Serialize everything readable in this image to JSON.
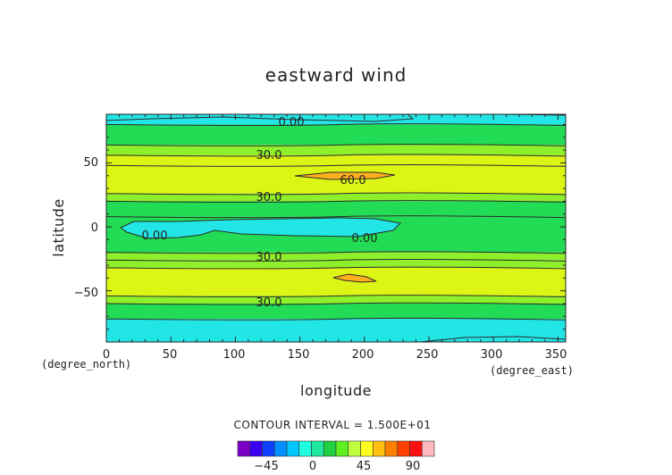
{
  "chart_data": {
    "type": "contour",
    "title": "eastward wind",
    "xlabel": "longitude",
    "ylabel": "latitude",
    "x_unit": "(degree_east)",
    "y_unit": "(degree_north)",
    "xlim": [
      0,
      356
    ],
    "ylim": [
      -90,
      88
    ],
    "x_ticks": [
      "0",
      "50",
      "100",
      "150",
      "200",
      "250",
      "300",
      "350"
    ],
    "y_ticks": [
      "50",
      "0",
      "−50"
    ],
    "contour_labels": [
      "0.00",
      "30.0",
      "60.0",
      "30.0",
      "0.00",
      "0.00",
      "30.0",
      "30.0"
    ],
    "contour_interval_text": "CONTOUR INTERVAL = 1.500E+01",
    "bands": [
      {
        "lat": [
          80,
          88
        ],
        "value": "0 to 15"
      },
      {
        "lat": [
          64,
          80
        ],
        "value": "15 to 30"
      },
      {
        "lat": [
          56,
          64
        ],
        "value": "30 to 45"
      },
      {
        "lat": [
          48,
          56
        ],
        "value": "45 to 60"
      },
      {
        "lat": [
          26,
          48
        ],
        "value": "45 to 60"
      },
      {
        "lat": [
          20,
          26
        ],
        "value": "30 to 45"
      },
      {
        "lat": [
          8,
          20
        ],
        "value": "15 to 30"
      },
      {
        "lat": [
          -20,
          8
        ],
        "value": "15 to 30"
      },
      {
        "lat": [
          -26,
          -20
        ],
        "value": "30 to 45"
      },
      {
        "lat": [
          -32,
          -26
        ],
        "value": "30 to 45"
      },
      {
        "lat": [
          -54,
          -32
        ],
        "value": "45 to 60"
      },
      {
        "lat": [
          -60,
          -54
        ],
        "value": "30 to 45"
      },
      {
        "lat": [
          -72,
          -60
        ],
        "value": "15 to 30"
      },
      {
        "lat": [
          -90,
          -72
        ],
        "value": "0 to 15"
      }
    ],
    "colorbar": {
      "tick_labels": [
        "−45",
        "0",
        "45",
        "90"
      ],
      "colors": [
        "#7a00c8",
        "#3a00f0",
        "#1040ff",
        "#0090ff",
        "#00c8ff",
        "#20ffe0",
        "#20e8a0",
        "#20d040",
        "#60f020",
        "#c0ff40",
        "#ffff20",
        "#ffc010",
        "#ff8000",
        "#ff4000",
        "#ff1010",
        "#ffb8c0"
      ]
    },
    "colors": {
      "cyan": "#22e6e6",
      "teal": "#20e8a0",
      "green": "#22dc55",
      "lime": "#8ef02a",
      "yellow": "#dcf514",
      "orange": "#ffb020"
    }
  }
}
